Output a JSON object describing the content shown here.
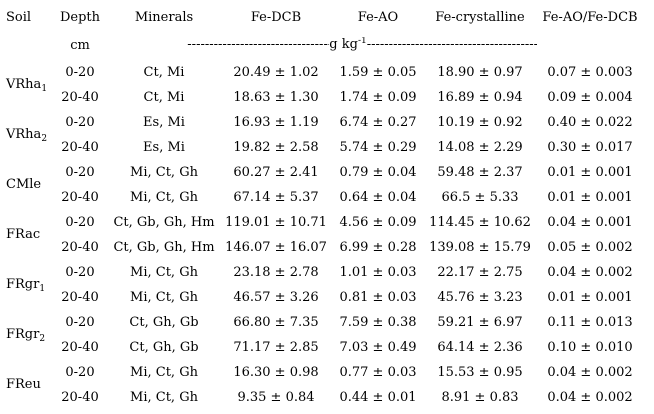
{
  "header": {
    "soil": "Soil",
    "depth": "Depth",
    "minerals": "Minerals",
    "fe_dcb": "Fe-DCB",
    "fe_ao": "Fe-AO",
    "fe_crystalline": "Fe-crystalline",
    "ratio": "Fe-AO/Fe-DCB"
  },
  "units": {
    "depth": "cm",
    "dashes_left": "---------------------------------------------------",
    "unit_text": "g kg",
    "unit_exp": "-1",
    "dashes_right": "---------------------------------------------------"
  },
  "rows": [
    {
      "soil_base": "VRha",
      "soil_sub": "1",
      "depth": "0-20",
      "minerals": "Ct, Mi",
      "fe_dcb": "20.49 ± 1.02",
      "fe_ao": "1.59 ± 0.05",
      "fe_cryst": "18.90 ± 0.97",
      "ratio": "0.07 ± 0.003"
    },
    {
      "soil_base": "",
      "soil_sub": "",
      "depth": "20-40",
      "minerals": "Ct, Mi",
      "fe_dcb": "18.63 ± 1.30",
      "fe_ao": "1.74 ± 0.09",
      "fe_cryst": "16.89 ± 0.94",
      "ratio": "0.09 ± 0.004"
    },
    {
      "soil_base": "VRha",
      "soil_sub": "2",
      "depth": "0-20",
      "minerals": "Es, Mi",
      "fe_dcb": "16.93 ± 1.19",
      "fe_ao": "6.74 ± 0.27",
      "fe_cryst": "10.19 ± 0.92",
      "ratio": "0.40 ± 0.022"
    },
    {
      "soil_base": "",
      "soil_sub": "",
      "depth": "20-40",
      "minerals": "Es, Mi",
      "fe_dcb": "19.82 ± 2.58",
      "fe_ao": "5.74 ± 0.29",
      "fe_cryst": "14.08 ± 2.29",
      "ratio": "0.30 ± 0.017"
    },
    {
      "soil_base": "CMle",
      "soil_sub": "",
      "depth": "0-20",
      "minerals": "Mi, Ct, Gh",
      "fe_dcb": "60.27 ± 2.41",
      "fe_ao": "0.79 ± 0.04",
      "fe_cryst": "59.48 ± 2.37",
      "ratio": "0.01 ± 0.001"
    },
    {
      "soil_base": "",
      "soil_sub": "",
      "depth": "20-40",
      "minerals": "Mi, Ct, Gh",
      "fe_dcb": "67.14 ± 5.37",
      "fe_ao": "0.64 ± 0.04",
      "fe_cryst": "66.5 ± 5.33",
      "ratio": "0.01 ± 0.001"
    },
    {
      "soil_base": "FRac",
      "soil_sub": "",
      "depth": "0-20",
      "minerals": "Ct, Gb, Gh, Hm",
      "fe_dcb": "119.01 ± 10.71",
      "fe_ao": "4.56 ± 0.09",
      "fe_cryst": "114.45 ± 10.62",
      "ratio": "0.04 ± 0.001"
    },
    {
      "soil_base": "",
      "soil_sub": "",
      "depth": "20-40",
      "minerals": "Ct, Gb, Gh, Hm",
      "fe_dcb": "146.07 ± 16.07",
      "fe_ao": "6.99 ± 0.28",
      "fe_cryst": "139.08 ± 15.79",
      "ratio": "0.05 ± 0.002"
    },
    {
      "soil_base": "FRgr",
      "soil_sub": "1",
      "depth": "0-20",
      "minerals": "Mi, Ct, Gh",
      "fe_dcb": "23.18 ± 2.78",
      "fe_ao": "1.01 ± 0.03",
      "fe_cryst": "22.17 ± 2.75",
      "ratio": "0.04 ± 0.002"
    },
    {
      "soil_base": "",
      "soil_sub": "",
      "depth": "20-40",
      "minerals": "Mi, Ct, Gh",
      "fe_dcb": "46.57 ± 3.26",
      "fe_ao": "0.81 ± 0.03",
      "fe_cryst": "45.76 ± 3.23",
      "ratio": "0.01 ± 0.001"
    },
    {
      "soil_base": "FRgr",
      "soil_sub": "2",
      "depth": "0-20",
      "minerals": "Ct, Gh, Gb",
      "fe_dcb": "66.80 ± 7.35",
      "fe_ao": "7.59 ± 0.38",
      "fe_cryst": "59.21 ± 6.97",
      "ratio": "0.11 ± 0.013"
    },
    {
      "soil_base": "",
      "soil_sub": "",
      "depth": "20-40",
      "minerals": "Ct, Gh, Gb",
      "fe_dcb": "71.17 ± 2.85",
      "fe_ao": "7.03 ± 0.49",
      "fe_cryst": "64.14 ± 2.36",
      "ratio": "0.10 ± 0.010"
    },
    {
      "soil_base": "FReu",
      "soil_sub": "",
      "depth": "0-20",
      "minerals": "Mi, Ct, Gh",
      "fe_dcb": "16.30 ± 0.98",
      "fe_ao": "0.77 ± 0.03",
      "fe_cryst": "15.53 ± 0.95",
      "ratio": "0.04 ± 0.002"
    },
    {
      "soil_base": "",
      "soil_sub": "",
      "depth": "20-40",
      "minerals": "Mi, Ct, Gh",
      "fe_dcb": "9.35 ± 0.84",
      "fe_ao": "0.44 ± 0.01",
      "fe_cryst": "8.91 ± 0.83",
      "ratio": "0.04 ± 0.002"
    }
  ]
}
